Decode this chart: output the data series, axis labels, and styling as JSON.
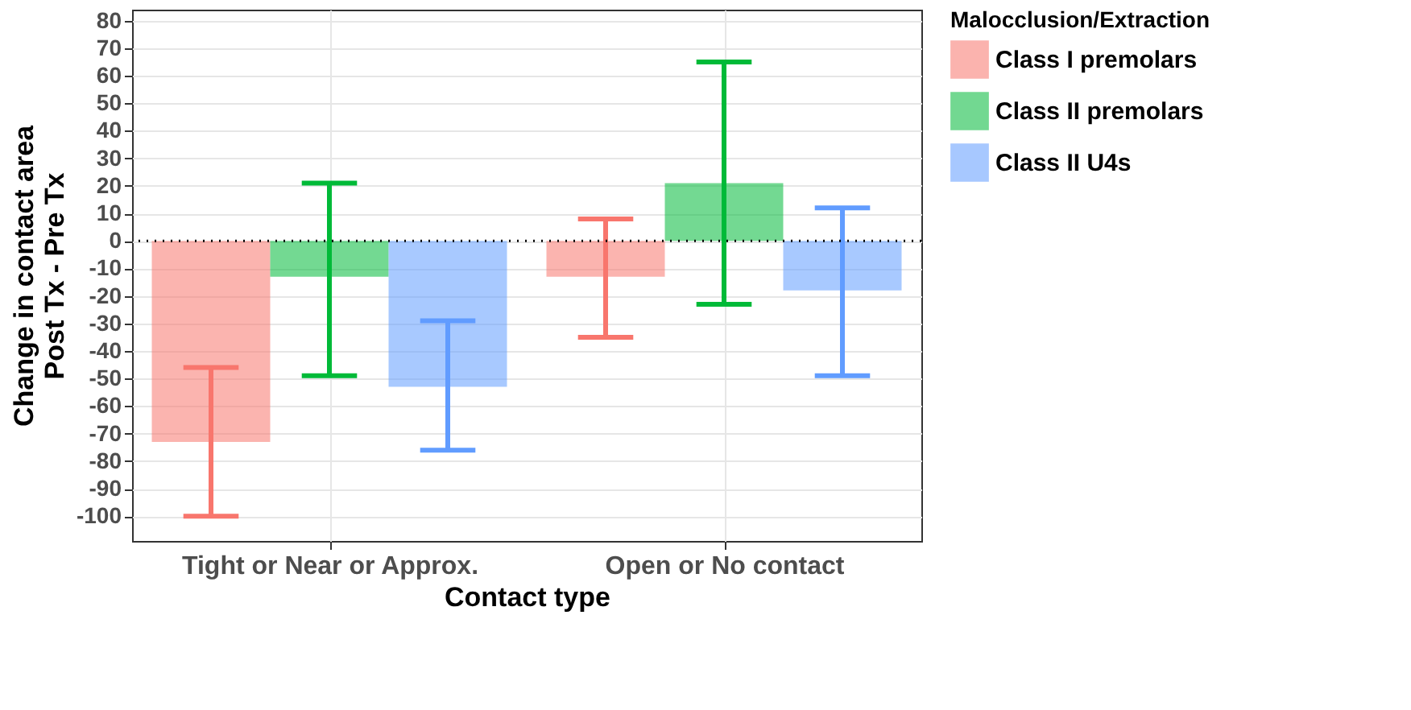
{
  "chart_data": {
    "type": "bar",
    "xlabel": "Contact type",
    "ylabel": "Change in contact area\nPost Tx - Pre Tx",
    "legend_title": "Malocclusion/Extraction",
    "categories": [
      "Tight or Near or Approx.",
      "Open or No contact"
    ],
    "series": [
      {
        "name": "Class I premolars",
        "color": "#f8766d",
        "values": [
          -73,
          -13
        ],
        "errors": [
          [
            -100,
            -46
          ],
          [
            -35,
            8
          ]
        ]
      },
      {
        "name": "Class II premolars",
        "color": "#00ba38",
        "values": [
          -13,
          21
        ],
        "errors": [
          [
            -49,
            21
          ],
          [
            -23,
            65
          ]
        ]
      },
      {
        "name": "Class II U4s",
        "color": "#619cff",
        "values": [
          -53,
          -18
        ],
        "errors": [
          [
            -76,
            -29
          ],
          [
            -49,
            12
          ]
        ]
      }
    ],
    "ylim": [
      -109,
      84
    ],
    "yticks": [
      -100,
      -90,
      -80,
      -70,
      -60,
      -50,
      -40,
      -30,
      -20,
      -10,
      0,
      10,
      20,
      30,
      40,
      50,
      60,
      70,
      80
    ],
    "ref_lines": [
      {
        "axis": "y",
        "value": 0,
        "color": "#000000",
        "line_style": "dotted"
      }
    ],
    "grid": true,
    "legend": "right"
  }
}
